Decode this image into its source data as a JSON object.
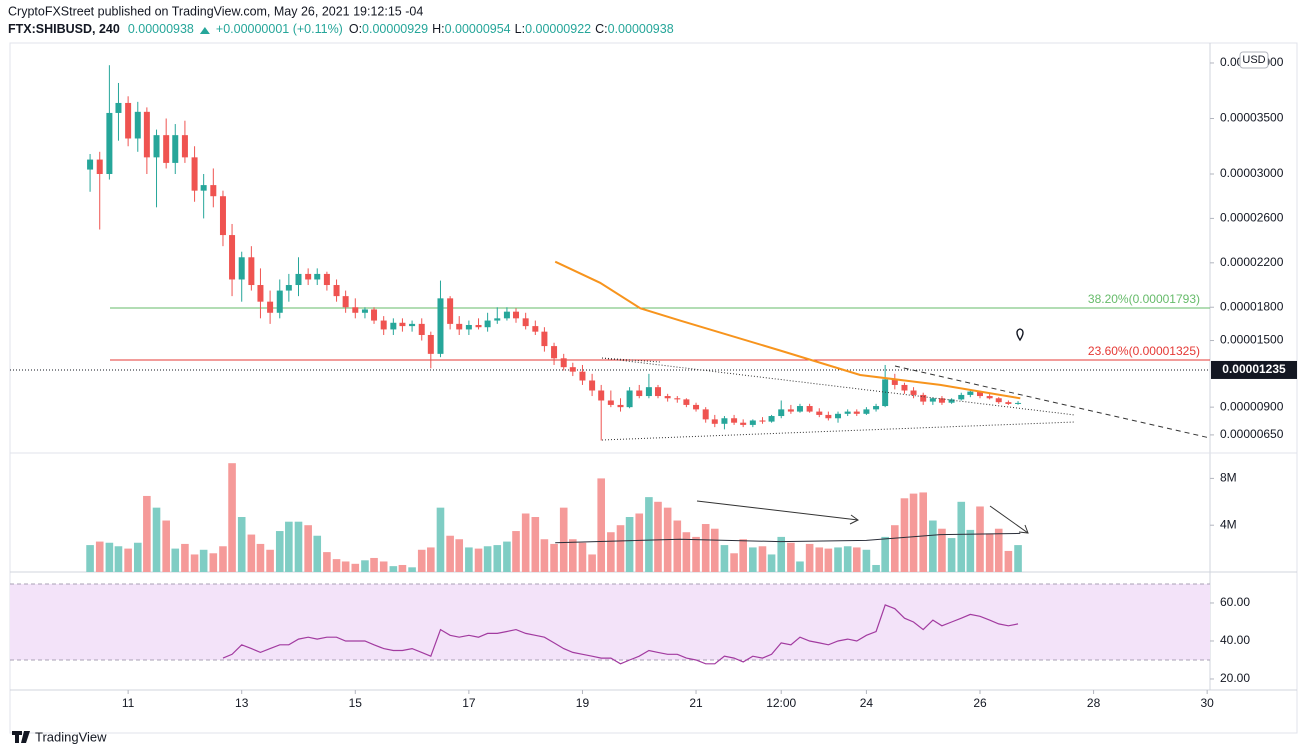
{
  "header": {
    "publisher": "CryptoFXStreet published on TradingView.com, May 26, 2021 19:12:15 -04",
    "symbol": "FTX:SHIBUSD, 240",
    "last": "0.00000938",
    "change": "+0.00000001 (+0.11%)",
    "ohlc": [
      {
        "label": "O:",
        "value": "0.00000929"
      },
      {
        "label": "H:",
        "value": "0.00000954"
      },
      {
        "label": "L:",
        "value": "0.00000922"
      },
      {
        "label": "C:",
        "value": "0.00000938"
      }
    ]
  },
  "footer": {
    "brand": "TradingView"
  },
  "chart_data": {
    "type": "candlestick",
    "currency": "USD",
    "colors": {
      "up": "#26a69a",
      "down": "#ef5350",
      "volume_up": "#7fcdc4",
      "volume_down": "#f59a99"
    },
    "xlim": [
      8.92,
      30.05
    ],
    "xticks": [
      11,
      13,
      15,
      17,
      19,
      21,
      {
        "value": 22.5,
        "label": "12:00"
      },
      24,
      26,
      28,
      30
    ],
    "ylim": [
      4.87e-06,
      4.18e-05
    ],
    "yticks": [
      {
        "value": 4e-05,
        "label": "0.00004000"
      },
      {
        "value": 3.5e-05,
        "label": "0.00003500"
      },
      {
        "value": 3e-05,
        "label": "0.00003000"
      },
      {
        "value": 2.6e-05,
        "label": "0.00002600"
      },
      {
        "value": 2.2e-05,
        "label": "0.00002200"
      },
      {
        "value": 1.8e-05,
        "label": "0.00001800"
      },
      {
        "value": 1.5e-05,
        "label": "0.00001500"
      },
      {
        "value": 9e-06,
        "label": "0.00000900"
      },
      {
        "value": 6.5e-06,
        "label": "0.00000650"
      }
    ],
    "x": [
      10.33,
      10.5,
      10.67,
      10.83,
      11,
      11.17,
      11.33,
      11.5,
      11.67,
      11.83,
      12,
      12.17,
      12.33,
      12.5,
      12.67,
      12.83,
      13,
      13.17,
      13.33,
      13.5,
      13.67,
      13.83,
      14,
      14.17,
      14.33,
      14.5,
      14.67,
      14.83,
      15,
      15.17,
      15.33,
      15.5,
      15.67,
      15.83,
      16,
      16.17,
      16.33,
      16.5,
      16.67,
      16.83,
      17,
      17.17,
      17.33,
      17.5,
      17.67,
      17.83,
      18,
      18.17,
      18.33,
      18.5,
      18.67,
      18.83,
      19,
      19.17,
      19.33,
      19.5,
      19.67,
      19.83,
      20,
      20.17,
      20.33,
      20.5,
      20.67,
      20.83,
      21,
      21.17,
      21.33,
      21.5,
      21.67,
      21.83,
      22,
      22.17,
      22.33,
      22.5,
      22.67,
      22.83,
      23,
      23.17,
      23.33,
      23.5,
      23.67,
      23.83,
      24,
      24.17,
      24.33,
      24.5,
      24.67,
      24.83,
      25,
      25.17,
      25.33,
      25.5,
      25.67,
      25.83,
      26,
      26.17,
      26.33,
      26.5,
      26.67
    ],
    "open": [
      3.04e-05,
      3.13e-05,
      3e-05,
      3.55e-05,
      3.64e-05,
      3.32e-05,
      3.56e-05,
      3.15e-05,
      3.35e-05,
      3.1e-05,
      3.35e-05,
      3.15e-05,
      2.85e-05,
      2.9e-05,
      2.8e-05,
      2.45e-05,
      2.05e-05,
      2.25e-05,
      2e-05,
      1.85e-05,
      1.75e-05,
      1.95e-05,
      2e-05,
      2.1e-05,
      2.05e-05,
      2.1e-05,
      2e-05,
      1.9e-05,
      1.8e-05,
      1.75e-05,
      1.78e-05,
      1.68e-05,
      1.6e-05,
      1.66e-05,
      1.63e-05,
      1.65e-05,
      1.55e-05,
      1.38e-05,
      1.88e-05,
      1.65e-05,
      1.6e-05,
      1.64e-05,
      1.62e-05,
      1.68e-05,
      1.7e-05,
      1.76e-05,
      1.7e-05,
      1.63e-05,
      1.58e-05,
      1.45e-05,
      1.34e-05,
      1.26e-05,
      1.22e-05,
      1.14e-05,
      1.05e-05,
      9.6e-06,
      9.2e-06,
      9e-06,
      1.05e-05,
      1e-05,
      1.08e-05,
      1e-05,
      9.8e-06,
      9.7e-06,
      9.2e-06,
      8.8e-06,
      7.9e-06,
      7.5e-06,
      8e-06,
      7.6e-06,
      7.4e-06,
      7.8e-06,
      7.7e-06,
      8.2e-06,
      8.8e-06,
      8.6e-06,
      9.1e-06,
      8.6e-06,
      8.3e-06,
      8e-06,
      8.4e-06,
      8.6e-06,
      8.4e-06,
      8.8e-06,
      9.1e-06,
      1.15e-05,
      1.1e-05,
      1.05e-05,
      1.01e-05,
      9.5e-06,
      9.8e-06,
      9.4e-06,
      9.7e-06,
      1.01e-05,
      1.04e-05,
      1e-05,
      9.8e-06,
      9.45e-06,
      9.29e-06
    ],
    "high": [
      3.18e-05,
      3.2e-05,
      3.98e-05,
      3.82e-05,
      3.7e-05,
      3.65e-05,
      3.6e-05,
      3.4e-05,
      3.5e-05,
      3.45e-05,
      3.48e-05,
      3.25e-05,
      3e-05,
      3.05e-05,
      2.85e-05,
      2.55e-05,
      2.3e-05,
      2.35e-05,
      2.15e-05,
      1.95e-05,
      2.05e-05,
      2.1e-05,
      2.25e-05,
      2.15e-05,
      2.15e-05,
      2.12e-05,
      2.05e-05,
      1.95e-05,
      1.88e-05,
      1.8e-05,
      1.8e-05,
      1.72e-05,
      1.7e-05,
      1.7e-05,
      1.68e-05,
      1.7e-05,
      1.58e-05,
      2.04e-05,
      1.9e-05,
      1.72e-05,
      1.68e-05,
      1.7e-05,
      1.75e-05,
      1.8e-05,
      1.8e-05,
      1.79e-05,
      1.75e-05,
      1.68e-05,
      1.62e-05,
      1.48e-05,
      1.38e-05,
      1.3e-05,
      1.28e-05,
      1.2e-05,
      1.1e-05,
      1.05e-05,
      9.8e-06,
      1.08e-05,
      1.1e-05,
      1.2e-05,
      1.1e-05,
      1.02e-05,
      1e-05,
      9.8e-06,
      9.4e-06,
      9e-06,
      8.3e-06,
      8.2e-06,
      8.3e-06,
      7.9e-06,
      7.9e-06,
      8.1e-06,
      8.3e-06,
      9.6e-06,
      9.2e-06,
      9.3e-06,
      9.3e-06,
      8.9e-06,
      8.6e-06,
      8.6e-06,
      8.8e-06,
      8.8e-06,
      9e-06,
      9.3e-06,
      1.28e-05,
      1.2e-05,
      1.12e-05,
      1.08e-05,
      1.03e-05,
      9.9e-06,
      1e-05,
      9.8e-06,
      1.03e-05,
      1.06e-05,
      1.05e-05,
      1.03e-05,
      9.9e-06,
      9.6e-06,
      9.54e-06
    ],
    "low": [
      2.84e-05,
      2.5e-05,
      2.95e-05,
      3.3e-05,
      3.25e-05,
      3.2e-05,
      3e-05,
      2.7e-05,
      3.05e-05,
      3e-05,
      3.1e-05,
      2.75e-05,
      2.6e-05,
      2.7e-05,
      2.35e-05,
      1.9e-05,
      1.85e-05,
      1.95e-05,
      1.7e-05,
      1.65e-05,
      1.7e-05,
      1.85e-05,
      1.9e-05,
      2e-05,
      2e-05,
      1.95e-05,
      1.85e-05,
      1.75e-05,
      1.7e-05,
      1.7e-05,
      1.65e-05,
      1.55e-05,
      1.55e-05,
      1.58e-05,
      1.58e-05,
      1.5e-05,
      1.25e-05,
      1.35e-05,
      1.6e-05,
      1.55e-05,
      1.55e-05,
      1.6e-05,
      1.58e-05,
      1.65e-05,
      1.68e-05,
      1.66e-05,
      1.6e-05,
      1.55e-05,
      1.4e-05,
      1.28e-05,
      1.23e-05,
      1.18e-05,
      1.1e-05,
      1e-05,
      6e-06,
      9e-06,
      8.6e-06,
      8.9e-06,
      9.8e-06,
      9.8e-06,
      9.8e-06,
      9.5e-06,
      9.4e-06,
      9e-06,
      8.6e-06,
      7.6e-06,
      7.2e-06,
      7e-06,
      7.4e-06,
      7.2e-06,
      7.2e-06,
      7.5e-06,
      7.6e-06,
      8e-06,
      8.4e-06,
      8.5e-06,
      8.5e-06,
      8.1e-06,
      7.8e-06,
      7.6e-06,
      8.2e-06,
      8.2e-06,
      8.3e-06,
      8.6e-06,
      9e-06,
      1.06e-05,
      1.02e-05,
      9.8e-06,
      9.2e-06,
      9.2e-06,
      9.2e-06,
      9.3e-06,
      9.6e-06,
      9.9e-06,
      9.8e-06,
      9.7e-06,
      9.3e-06,
      9.2e-06,
      9.22e-06
    ],
    "close": [
      3.13e-05,
      3e-05,
      3.55e-05,
      3.64e-05,
      3.32e-05,
      3.56e-05,
      3.15e-05,
      3.35e-05,
      3.1e-05,
      3.35e-05,
      3.15e-05,
      2.85e-05,
      2.9e-05,
      2.8e-05,
      2.45e-05,
      2.05e-05,
      2.25e-05,
      2e-05,
      1.85e-05,
      1.75e-05,
      1.95e-05,
      2e-05,
      2.1e-05,
      2.05e-05,
      2.1e-05,
      2e-05,
      1.9e-05,
      1.8e-05,
      1.75e-05,
      1.78e-05,
      1.68e-05,
      1.6e-05,
      1.66e-05,
      1.63e-05,
      1.65e-05,
      1.55e-05,
      1.38e-05,
      1.88e-05,
      1.65e-05,
      1.6e-05,
      1.64e-05,
      1.62e-05,
      1.68e-05,
      1.7e-05,
      1.76e-05,
      1.7e-05,
      1.63e-05,
      1.58e-05,
      1.45e-05,
      1.34e-05,
      1.26e-05,
      1.22e-05,
      1.14e-05,
      1.05e-05,
      9.6e-06,
      9.2e-06,
      9e-06,
      1.05e-05,
      1e-05,
      1.08e-05,
      1e-05,
      9.8e-06,
      9.7e-06,
      9.2e-06,
      8.8e-06,
      7.9e-06,
      7.5e-06,
      8e-06,
      7.6e-06,
      7.4e-06,
      7.8e-06,
      7.7e-06,
      8.2e-06,
      8.8e-06,
      8.6e-06,
      9.1e-06,
      8.6e-06,
      8.3e-06,
      8e-06,
      8.4e-06,
      8.6e-06,
      8.4e-06,
      8.8e-06,
      9.1e-06,
      1.15e-05,
      1.1e-05,
      1.05e-05,
      1.01e-05,
      9.5e-06,
      9.8e-06,
      9.4e-06,
      9.7e-06,
      1.01e-05,
      1.04e-05,
      1e-05,
      9.8e-06,
      9.45e-06,
      9.29e-06,
      9.38e-06
    ],
    "price_line": {
      "value": 1.235e-05,
      "label": "0.00001235"
    },
    "levels": [
      {
        "label": "38.20%(0.00001793)",
        "value": 1.793e-05,
        "color": "#66bb6a"
      },
      {
        "label": "23.60%(0.00001325)",
        "value": 1.325e-05,
        "color": "#e53935"
      }
    ],
    "moving_average": {
      "color": "#f7941d",
      "x": [
        18.52,
        19.31,
        20.02,
        20.72,
        22.48,
        23.89,
        25.3,
        26.71
      ],
      "values": [
        2.21e-05,
        2.02e-05,
        1.79e-05,
        1.68e-05,
        1.41e-05,
        1.19e-05,
        1.1e-05,
        9.8e-06
      ]
    },
    "volume": {
      "ylim": [
        0,
        10000000
      ],
      "yticks": [
        {
          "value": 4000000,
          "label": "4M"
        },
        {
          "value": 8000000,
          "label": "8M"
        }
      ],
      "values": [
        2300000,
        2600000,
        2500000,
        2200000,
        2000000,
        2500000,
        6500000,
        5500000,
        4400000,
        2000000,
        2400000,
        1500000,
        1900000,
        1600000,
        2200000,
        9300000,
        4700000,
        3200000,
        2400000,
        1900000,
        3500000,
        4300000,
        4300000,
        4000000,
        3100000,
        1700000,
        1100000,
        900000,
        700000,
        1000000,
        1200000,
        900000,
        500000,
        600000,
        400000,
        1900000,
        2100000,
        5500000,
        3100000,
        2800000,
        2100000,
        2000000,
        2200000,
        2300000,
        2600000,
        3500000,
        5000000,
        4700000,
        2800000,
        2400000,
        5500000,
        2800000,
        2500000,
        1500000,
        8000000,
        3400000,
        4000000,
        4700000,
        5000000,
        6400000,
        6000000,
        5500000,
        4400000,
        3400000,
        3000000,
        4100000,
        3700000,
        2300000,
        1600000,
        2800000,
        2100000,
        2200000,
        1500000,
        3000000,
        2500000,
        900000,
        2400000,
        2100000,
        2000000,
        2100000,
        2200000,
        2100000,
        1900000,
        600000,
        3000000,
        4000000,
        6300000,
        6700000,
        6800000,
        4400000,
        3700000,
        2900000,
        6000000,
        3600000,
        5600000,
        3300000,
        3700000,
        1800000,
        2300000
      ],
      "ma": {
        "color": "#2a2e39",
        "x": [
          18.52,
          20.72,
          22.48,
          24.0,
          25.3,
          26.71
        ],
        "values": [
          2500000,
          2800000,
          2600000,
          2700000,
          3200000,
          3300000
        ]
      }
    },
    "rsi": {
      "color": "#a23ba0",
      "ylim": [
        14.2,
        76.3
      ],
      "band": [
        30,
        70
      ],
      "yticks": [
        {
          "value": 20,
          "label": "20.00"
        },
        {
          "value": 40,
          "label": "40.00"
        },
        {
          "value": 60,
          "label": "60.00"
        }
      ],
      "values": [
        null,
        null,
        null,
        null,
        null,
        null,
        null,
        null,
        null,
        null,
        null,
        null,
        null,
        null,
        31,
        33,
        38,
        36,
        34,
        36,
        38,
        38,
        41,
        42,
        41,
        42,
        42,
        40,
        40,
        40,
        38,
        36,
        35,
        35,
        36,
        34,
        32,
        46,
        43,
        42,
        43,
        42,
        44,
        44,
        45,
        46,
        44,
        43,
        42,
        39,
        36,
        34,
        33,
        32,
        31,
        31,
        28,
        30,
        32,
        35,
        34,
        33,
        33,
        31,
        30,
        28,
        28,
        32,
        31,
        29,
        32,
        31,
        33,
        39,
        38,
        42,
        40,
        39,
        38,
        40,
        41,
        40,
        43,
        45,
        59,
        57,
        52,
        50,
        46,
        51,
        48,
        50,
        52,
        54,
        53,
        51,
        49,
        48,
        49
      ]
    }
  }
}
